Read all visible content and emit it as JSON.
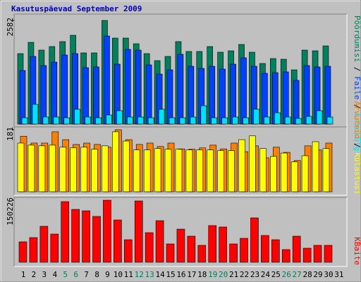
{
  "chart_data": [
    {
      "type": "bar",
      "title": "Kasutuspäevad September 2009",
      "separator": " / ",
      "ylim": [
        0,
        2582
      ],
      "yticks": [
        2582
      ],
      "series": [
        {
          "name": "Pöördumisi",
          "color": "#00805c",
          "values": [
            1756,
            2037,
            1844,
            1932,
            2055,
            2213,
            1774,
            1774,
            2582,
            2143,
            2143,
            2002,
            1756,
            1581,
            1686,
            2055,
            1809,
            1809,
            1932,
            1791,
            1826,
            1984,
            1791,
            1510,
            1633,
            1616,
            1352,
            1844,
            1826,
            1949,
            null
          ]
        },
        {
          "name": "Faile",
          "color": "#0040ff",
          "values": [
            1335,
            1686,
            1458,
            1545,
            1721,
            1756,
            1405,
            1423,
            2195,
            1493,
            1862,
            1844,
            1475,
            1247,
            1352,
            1739,
            1440,
            1387,
            1440,
            1370,
            1493,
            1651,
            1440,
            1265,
            1282,
            1300,
            1089,
            1458,
            1423,
            1440,
            null
          ]
        },
        {
          "name": "Lehekülgi",
          "color": "#00e0ff",
          "values": [
            158,
            492,
            176,
            176,
            158,
            369,
            176,
            158,
            228,
            334,
            176,
            176,
            158,
            369,
            158,
            158,
            176,
            457,
            158,
            158,
            176,
            158,
            369,
            176,
            281,
            176,
            141,
            193,
            334,
            176,
            null
          ]
        }
      ]
    },
    {
      "type": "bar",
      "separator": " / ",
      "ylim": [
        0,
        181
      ],
      "yticks": [
        181
      ],
      "series": [
        {
          "name": "Arvuteid",
          "color": "#ff8000",
          "values": [
            162,
            142,
            142,
            175,
            152,
            138,
            142,
            138,
            130,
            181,
            152,
            138,
            142,
            132,
            142,
            125,
            124,
            128,
            136,
            125,
            142,
            117,
            134,
            99,
            130,
            115,
            91,
            134,
            122,
            142,
            null
          ]
        },
        {
          "name": "Külastusi",
          "color": "#ffff00",
          "values": [
            142,
            136,
            134,
            136,
            130,
            128,
            130,
            124,
            134,
            175,
            148,
            122,
            122,
            126,
            124,
            124,
            122,
            122,
            122,
            120,
            120,
            152,
            163,
            126,
            103,
            113,
            87,
            105,
            146,
            126,
            null
          ]
        }
      ]
    },
    {
      "type": "bar",
      "ylim": [
        0,
        150226
      ],
      "yticks": [
        150226
      ],
      "categories": [
        "1",
        "2",
        "3",
        "4",
        "5",
        "6",
        "7",
        "8",
        "9",
        "10",
        "11",
        "12",
        "13",
        "14",
        "15",
        "16",
        "17",
        "18",
        "19",
        "20",
        "21",
        "22",
        "23",
        "24",
        "25",
        "26",
        "27",
        "28",
        "29",
        "30",
        "31"
      ],
      "category_colors": [
        "#000000",
        "#000000",
        "#000000",
        "#000000",
        "#00805c",
        "#00805c",
        "#000000",
        "#000000",
        "#000000",
        "#000000",
        "#000000",
        "#00805c",
        "#00805c",
        "#000000",
        "#000000",
        "#000000",
        "#000000",
        "#000000",
        "#00805c",
        "#00805c",
        "#000000",
        "#000000",
        "#000000",
        "#000000",
        "#000000",
        "#00805c",
        "#00805c",
        "#000000",
        "#000000",
        "#000000",
        "#000000"
      ],
      "series": [
        {
          "name": "KBaite",
          "color": "#ff0000",
          "values": [
            49500,
            59750,
            87060,
            68290,
            146800,
            128000,
            124600,
            111000,
            150226,
            102400,
            54600,
            148500,
            71700,
            100700,
            44400,
            80200,
            63200,
            41000,
            88800,
            85400,
            44400,
            58000,
            107500,
            64900,
            54600,
            30700,
            63200,
            34100,
            41000,
            41000,
            null
          ]
        }
      ]
    }
  ]
}
